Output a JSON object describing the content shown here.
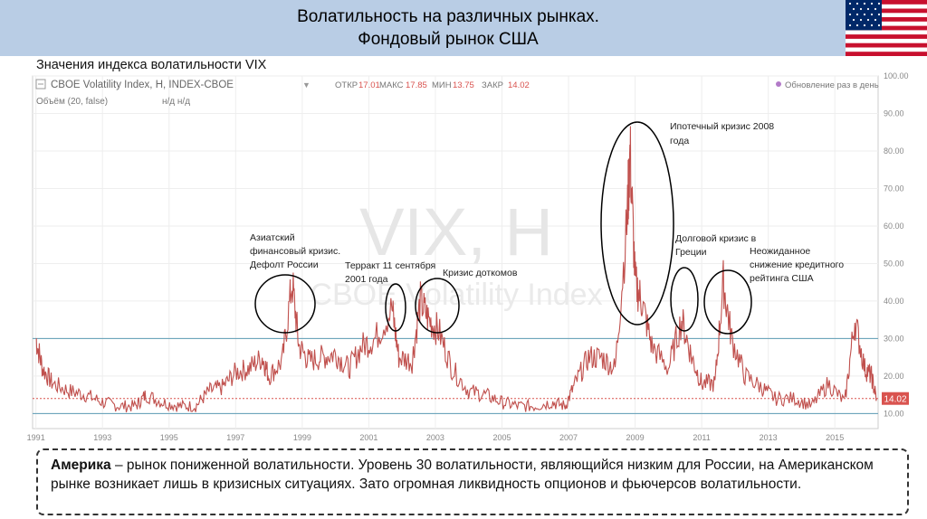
{
  "header": {
    "title_line1": "Волатильность на различных рынках.",
    "title_line2": "Фондовый рынок США"
  },
  "subtitle": "Значения индекса волатильности VIX",
  "chart_toolbar": {
    "symbol": "CBOE Volatility Index, H, INDEX-CBOE",
    "open_label": "ОТКР",
    "open_value": "17.01",
    "high_label": "МАКС",
    "high_value": "17.85",
    "low_label": "МИН",
    "low_value": "13.75",
    "close_label": "ЗАКР",
    "close_value": "14.02",
    "update_text": "Обновление раз в день",
    "volume_text": "Объём (20, false)",
    "volume_na": "н/д н/д"
  },
  "watermark": {
    "line1": "VIX, H",
    "line2": "CBOE Volatility Index"
  },
  "last_price_label": "14.02",
  "annotations": [
    {
      "id": "asia",
      "lines": [
        "Азиатский",
        "финансовый кризис.",
        "Дефолт России"
      ]
    },
    {
      "id": "sept11",
      "lines": [
        "Терракт 11 сентября",
        "2001 года"
      ]
    },
    {
      "id": "dotcom",
      "lines": [
        "Кризис доткомов"
      ]
    },
    {
      "id": "mortgage",
      "lines": [
        "Ипотечный кризис 2008",
        "года"
      ]
    },
    {
      "id": "greece",
      "lines": [
        "Долговой кризис в",
        "Греции"
      ]
    },
    {
      "id": "downgrade",
      "lines": [
        "Неожиданное",
        "снижение кредитного",
        "рейтинга США"
      ]
    }
  ],
  "note": {
    "bold": "Америка",
    "rest": " – рынок пониженной волатильности. Уровень 30 волатильности, являющийся низким для России, на Американском рынке возникает  лишь в кризисных ситуациях. Зато огромная ликвидность опционов и фьючерсов волатильности."
  },
  "chart_data": {
    "type": "line",
    "title": "CBOE Volatility Index, H, INDEX-CBOE",
    "xlabel": "",
    "ylabel": "",
    "x_ticks": [
      "1991",
      "1993",
      "1995",
      "1997",
      "1999",
      "2001",
      "2003",
      "2005",
      "2007",
      "2009",
      "2011",
      "2013",
      "2015"
    ],
    "y_ticks": [
      "10.00",
      "20.00",
      "30.00",
      "40.00",
      "50.00",
      "60.00",
      "70.00",
      "80.00",
      "90.00",
      "100.00"
    ],
    "xlim": [
      1990.9,
      2016.3
    ],
    "ylim": [
      6,
      100
    ],
    "grid": true,
    "horizontal_lines": [
      30,
      10
    ],
    "last_value": 14.02,
    "series": [
      {
        "x": [
          1991.0,
          1991.2,
          1991.5,
          1992.0,
          1992.5,
          1993.0,
          1993.5,
          1994.0,
          1994.3,
          1994.8,
          1995.3,
          1995.8,
          1996.2,
          1996.6,
          1997.0,
          1997.4,
          1997.8,
          1998.0,
          1998.4,
          1998.7,
          1998.9,
          1999.2,
          1999.6,
          2000.0,
          2000.4,
          2000.8,
          2001.2,
          2001.7,
          2001.9,
          2002.3,
          2002.55,
          2002.8,
          2003.1,
          2003.5,
          2004.0,
          2004.5,
          2005.0,
          2005.5,
          2006.0,
          2006.5,
          2006.9,
          2007.2,
          2007.6,
          2008.0,
          2008.4,
          2008.75,
          2008.85,
          2009.0,
          2009.2,
          2009.5,
          2010.0,
          2010.4,
          2010.7,
          2011.0,
          2011.4,
          2011.65,
          2011.9,
          2012.3,
          2012.8,
          2013.2,
          2013.8,
          2014.3,
          2014.8,
          2015.3,
          2015.6,
          2015.9,
          2016.1,
          2016.25
        ],
        "y": [
          30,
          22,
          18,
          16,
          15,
          13,
          12,
          12,
          15,
          13,
          12,
          12,
          16,
          17,
          21,
          22,
          25,
          20,
          24,
          45,
          28,
          24,
          25,
          26,
          22,
          28,
          30,
          38,
          25,
          24,
          40,
          35,
          32,
          22,
          16,
          15,
          13,
          12,
          12,
          13,
          12,
          18,
          25,
          25,
          22,
          60,
          80,
          45,
          40,
          28,
          22,
          35,
          25,
          18,
          18,
          45,
          30,
          20,
          17,
          14,
          14,
          12,
          18,
          13,
          35,
          22,
          20,
          14
        ]
      }
    ]
  }
}
